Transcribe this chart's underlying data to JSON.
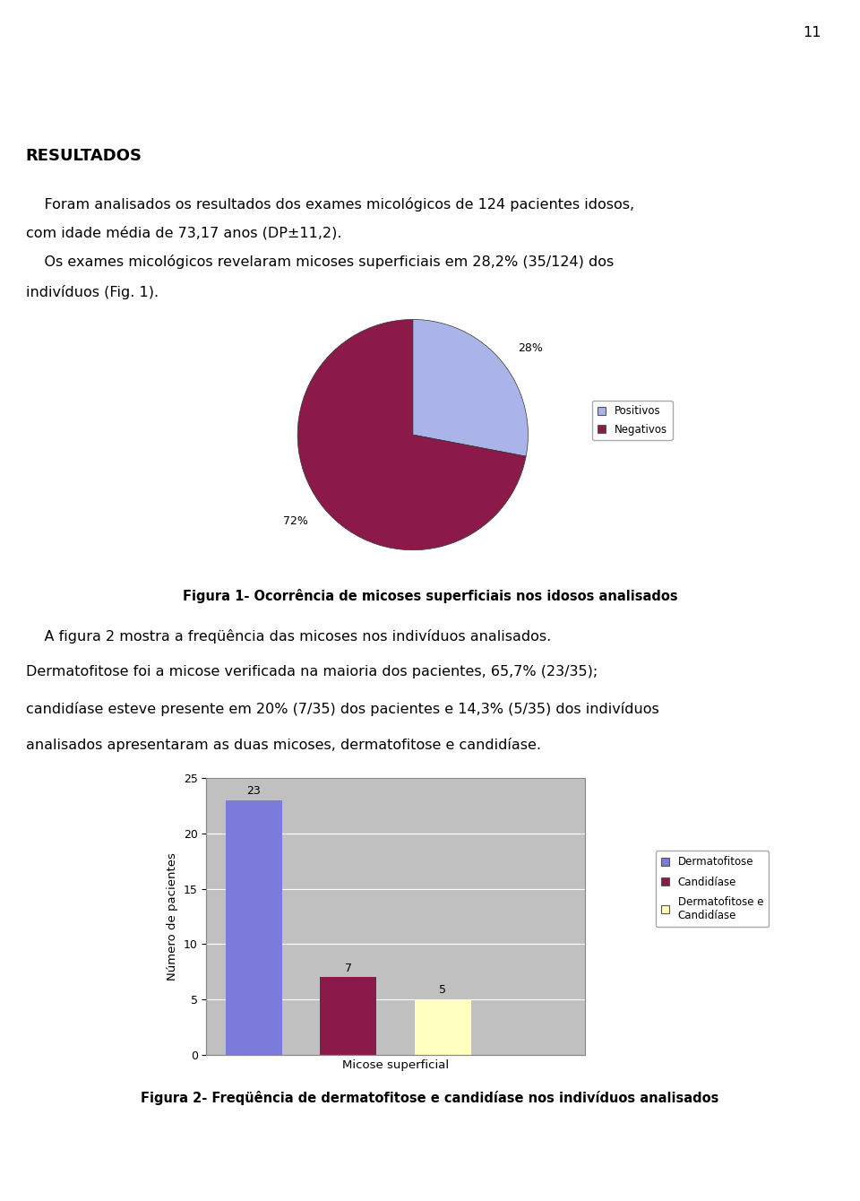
{
  "page_number": "11",
  "title_text": "RESULTADOS",
  "para1_line1": "    Foram analisados os resultados dos exames micológicos de 124 pacientes idosos,",
  "para1_line2": "com idade média de 73,17 anos (DP±11,2).",
  "para2_line1": "    Os exames micológicos revelaram micoses superficiais em 28,2% (35/124) dos",
  "para2_line2": "indivíduos (Fig. 1).",
  "fig1_caption": "Figura 1- Ocorrência de micoses superficiais nos idosos analisados",
  "pie_values": [
    28,
    72
  ],
  "pie_labels_text": [
    "28%",
    "72%"
  ],
  "pie_colors": [
    "#aab4e8",
    "#8b1a4a"
  ],
  "pie_legend_labels": [
    "Positivos",
    "Negativos"
  ],
  "pie_legend_colors": [
    "#aab4e8",
    "#8b1a4a"
  ],
  "para3_line1": "    A figura 2 mostra a freqüência das micoses nos indivíduos analisados.",
  "para3_line2": "Dermatofitose foi a micose verificada na maioria dos pacientes, 65,7% (23/35);",
  "para3_line3": "candidíase esteve presente em 20% (7/35) dos pacientes e 14,3% (5/35) dos indivíduos",
  "para3_line4": "analisados apresentaram as duas micoses, dermatofitose e candidíase.",
  "fig2_caption": "Figura 2- Freqüência de dermatofitose e candidíase nos indivíduos analisados",
  "bar_values": [
    23,
    7,
    5
  ],
  "bar_labels": [
    "23",
    "7",
    "5"
  ],
  "bar_colors": [
    "#7b7bdb",
    "#8b1a4a",
    "#ffffc0"
  ],
  "bar_legend_labels": [
    "Dermatofitose",
    "Candidíase",
    "Dermatofitose e\nCandidíase"
  ],
  "bar_xlabel": "Micose superficial",
  "bar_ylabel": "Número de pacientes",
  "bar_ylim": [
    0,
    25
  ],
  "bar_yticks": [
    0,
    5,
    10,
    15,
    20,
    25
  ],
  "background_color": "#ffffff",
  "chart_bg": "#c0c0c0",
  "pie_bg": "#ffffff",
  "text_color": "#000000"
}
